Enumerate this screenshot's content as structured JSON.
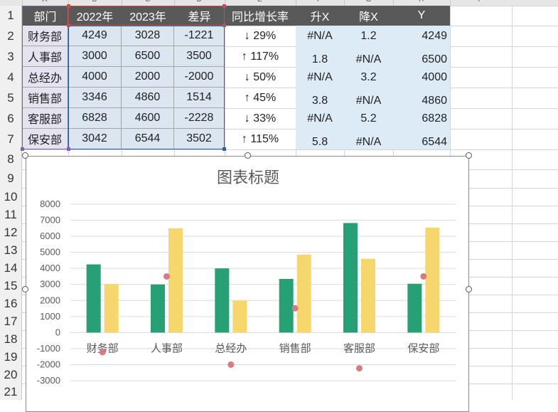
{
  "columns": [
    "A",
    "B",
    "C",
    "D",
    "E",
    "F",
    "G",
    "H",
    "I"
  ],
  "rows": [
    "1",
    "2",
    "3",
    "4",
    "5",
    "6",
    "7",
    "8",
    "9",
    "10",
    "11",
    "12",
    "13",
    "14",
    "15",
    "16",
    "17",
    "18",
    "19",
    "20",
    "21"
  ],
  "table": {
    "headers": [
      "部门",
      "2022年",
      "2023年",
      "差异",
      "同比增长率",
      "升X",
      "降X",
      "Y"
    ],
    "rows": [
      [
        "财务部",
        "4249",
        "3028",
        "-1221",
        "↓ 29%",
        "#N/A",
        "1.2",
        "4249"
      ],
      [
        "人事部",
        "3000",
        "6500",
        "3500",
        "↑ 117%",
        "1.8",
        "#N/A",
        "6500"
      ],
      [
        "总经办",
        "4000",
        "2000",
        "-2000",
        "↓ 50%",
        "#N/A",
        "3.2",
        "4000"
      ],
      [
        "销售部",
        "3346",
        "4860",
        "1514",
        "↑ 45%",
        "3.8",
        "#N/A",
        "4860"
      ],
      [
        "客服部",
        "6828",
        "4600",
        "-2228",
        "↓ 33%",
        "#N/A",
        "5.2",
        "6828"
      ],
      [
        "保安部",
        "3042",
        "6544",
        "3502",
        "↑ 115%",
        "5.8",
        "#N/A",
        "6544"
      ]
    ]
  },
  "colors": {
    "series2022": "#26a074",
    "series2023": "#f5d76e",
    "scatter": "#d77b83",
    "header": "#595959"
  },
  "chart_data": {
    "type": "bar",
    "title": "图表标题",
    "categories": [
      "财务部",
      "人事部",
      "总经办",
      "销售部",
      "客服部",
      "保安部"
    ],
    "series": [
      {
        "values": [
          4249,
          3000,
          4000,
          3346,
          6828,
          3042
        ]
      },
      {
        "values": [
          3028,
          6500,
          2000,
          4860,
          4600,
          6544
        ]
      }
    ],
    "scatter": {
      "y": [
        -1221,
        3500,
        -2000,
        1514,
        -2228,
        3502
      ]
    },
    "ylim": [
      -3000,
      8000
    ],
    "yticks": [
      "8000",
      "7000",
      "6000",
      "5000",
      "4000",
      "3000",
      "2000",
      "1000",
      "0",
      "-1000",
      "-2000",
      "-3000"
    ]
  }
}
